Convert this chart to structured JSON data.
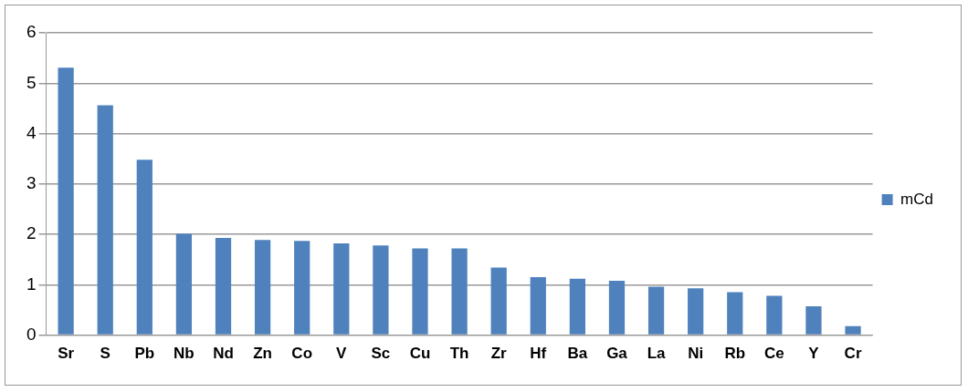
{
  "chart_data": {
    "type": "bar",
    "categories": [
      "Sr",
      "S",
      "Pb",
      "Nb",
      "Nd",
      "Zn",
      "Co",
      "V",
      "Sc",
      "Cu",
      "Th",
      "Zr",
      "Hf",
      "Ba",
      "Ga",
      "La",
      "Ni",
      "Rb",
      "Ce",
      "Y",
      "Cr"
    ],
    "series": [
      {
        "name": "mCd",
        "color": "#4f81bd",
        "values": [
          5.31,
          4.56,
          3.48,
          2.01,
          1.93,
          1.89,
          1.87,
          1.82,
          1.78,
          1.72,
          1.72,
          1.34,
          1.15,
          1.12,
          1.08,
          0.96,
          0.93,
          0.85,
          0.78,
          0.57,
          0.18
        ]
      }
    ],
    "ylim": [
      0,
      6
    ],
    "yticks": [
      0,
      1,
      2,
      3,
      4,
      5,
      6
    ],
    "grid": "y",
    "legend": "right"
  }
}
